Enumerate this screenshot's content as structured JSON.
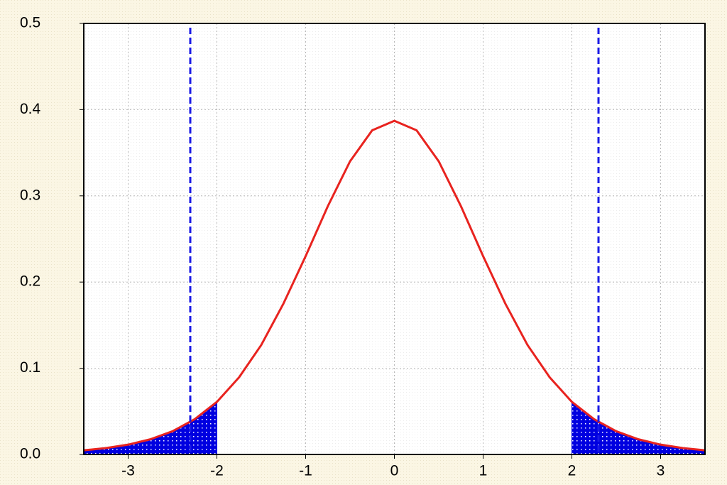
{
  "chart_data": {
    "type": "line",
    "x": [
      -3.5,
      -3.25,
      -3,
      -2.75,
      -2.5,
      -2.25,
      -2,
      -1.75,
      -1.5,
      -1.25,
      -1,
      -0.75,
      -0.5,
      -0.25,
      0,
      0.25,
      0.5,
      0.75,
      1,
      1.25,
      1.5,
      1.75,
      2,
      2.25,
      2.5,
      2.75,
      3,
      3.25,
      3.5
    ],
    "series": [
      {
        "color": "#e8231f",
        "values": [
          0.0048,
          0.0074,
          0.0114,
          0.0176,
          0.0269,
          0.0409,
          0.061,
          0.0895,
          0.127,
          0.175,
          0.23,
          0.288,
          0.34,
          0.376,
          0.387,
          0.376,
          0.34,
          0.288,
          0.23,
          0.175,
          0.127,
          0.0895,
          0.061,
          0.0409,
          0.0269,
          0.0176,
          0.0114,
          0.0074,
          0.0048
        ]
      }
    ],
    "shade_limits": [
      -2,
      2
    ],
    "shade_color": "#0000e0",
    "critical_lines": [
      -2.3,
      2.3
    ],
    "critical_line_color": "#1a1ae6",
    "xlim": [
      -3.5,
      3.5
    ],
    "ylim": [
      0,
      0.5
    ],
    "xticks": [
      -3,
      -2,
      -1,
      0,
      1,
      2,
      3
    ],
    "yticks": [
      {
        "value": 0,
        "label": "0.0"
      },
      0.1,
      0.2,
      0.3,
      0.4,
      0.5
    ],
    "grid": true
  }
}
